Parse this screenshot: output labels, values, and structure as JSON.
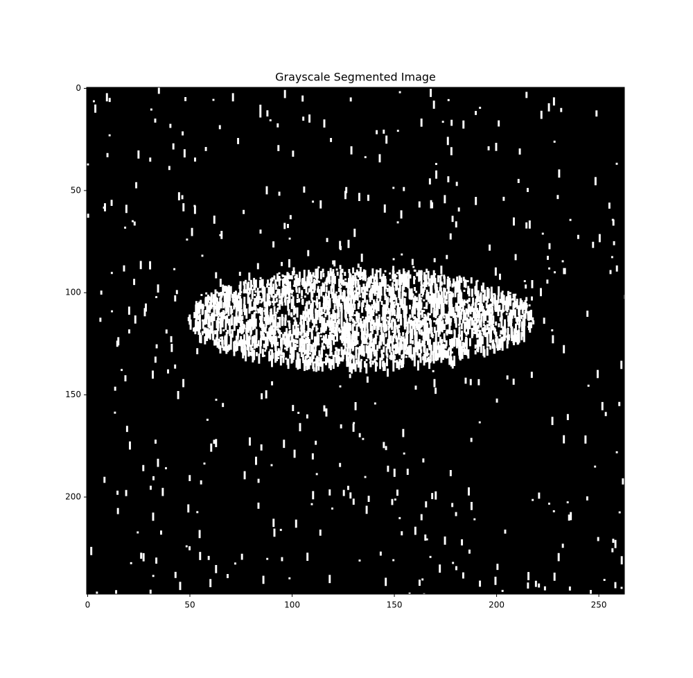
{
  "chart_data": {
    "type": "image",
    "title": "Grayscale Segmented Image",
    "xlim": [
      -0.5,
      262.5
    ],
    "ylim": [
      247.5,
      -0.5
    ],
    "xticks": [
      0,
      50,
      100,
      150,
      200,
      250
    ],
    "yticks": [
      0,
      50,
      100,
      150,
      200
    ],
    "colormap": "gray"
  }
}
